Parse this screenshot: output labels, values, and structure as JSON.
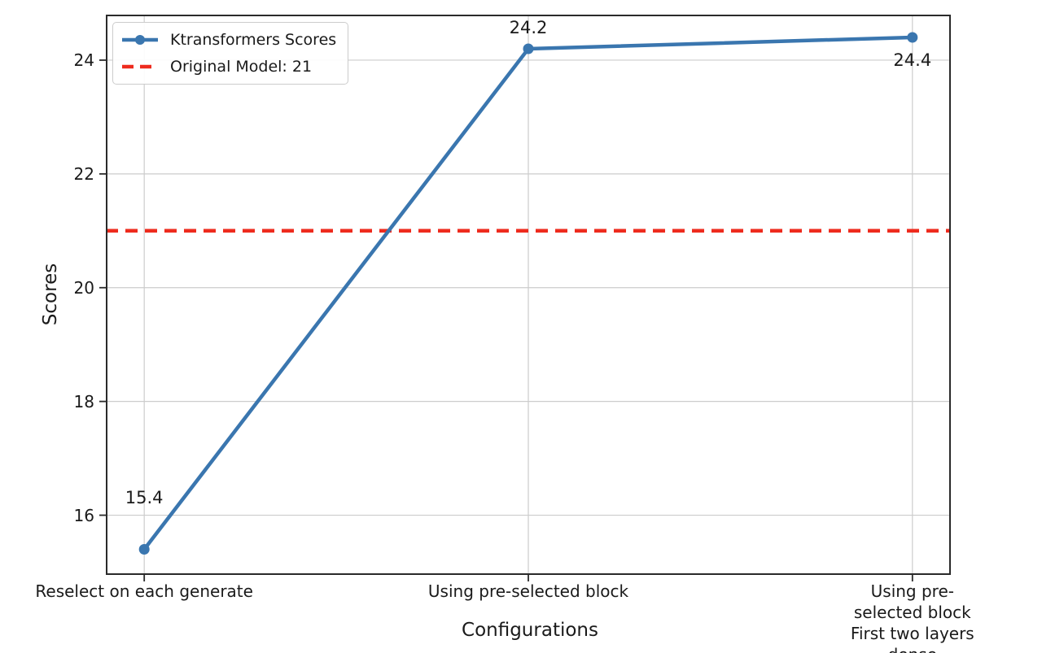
{
  "chart_data": {
    "type": "line",
    "title": "",
    "xlabel": "Configurations",
    "ylabel": "Scores",
    "categories": [
      "Reselect on each generate",
      "Using pre-selected block",
      "Using pre-selected block\nFirst two layers dense"
    ],
    "series": [
      {
        "name": "Ktransformers Scores",
        "values": [
          15.4,
          24.2,
          24.4
        ]
      }
    ],
    "reference_line": {
      "label": "Original Model: 21",
      "value": 21
    },
    "point_labels": [
      "15.4",
      "24.2",
      "24.4"
    ],
    "yticks": [
      16,
      18,
      20,
      22,
      24
    ],
    "ylim": [
      14.95,
      24.8
    ],
    "xlim": [
      -0.1,
      2.1
    ],
    "grid": true,
    "legend_position": "upper left",
    "legend": [
      "Ktransformers Scores",
      "Original Model: 21"
    ]
  },
  "colors": {
    "series_blue": "#3a76af",
    "reference_red": "#ee2b1e",
    "grid": "#cccccc",
    "frame": "#2a2a2a",
    "text": "#1a1a1a"
  }
}
